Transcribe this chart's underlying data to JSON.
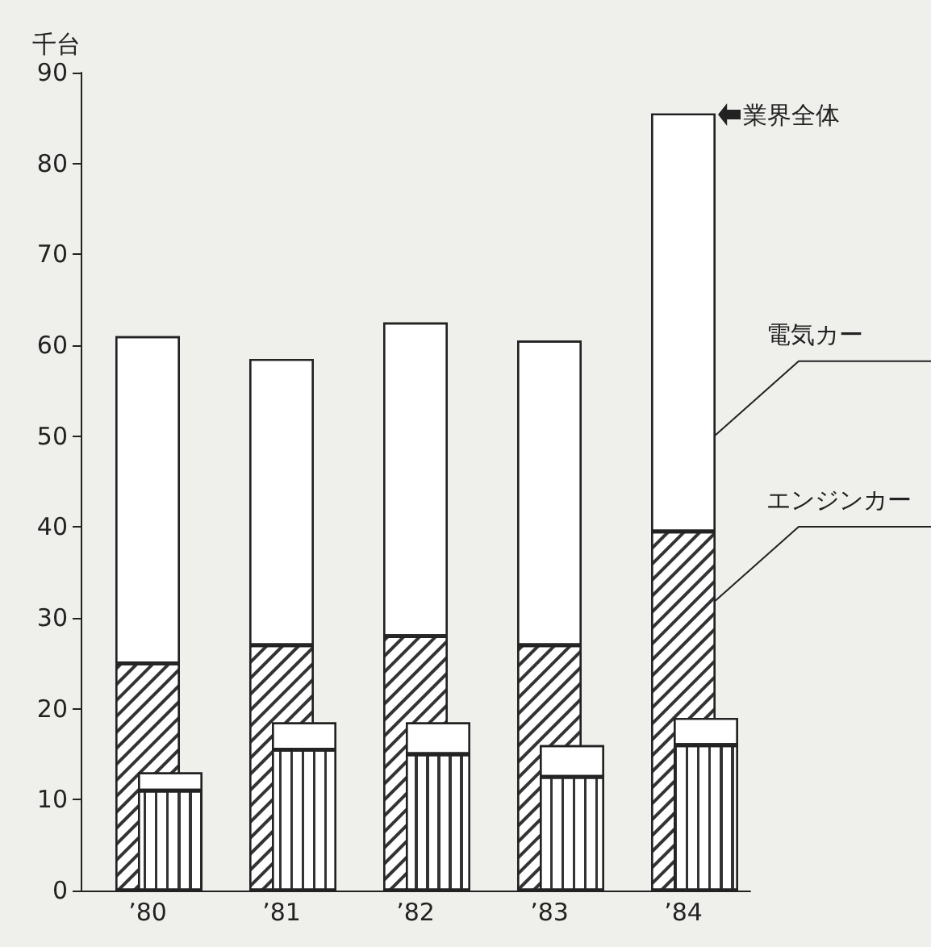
{
  "chart_data": [
    {
      "type": "bar",
      "ylabel": "千台",
      "categories": [
        "’80",
        "’81",
        "’82",
        "’83",
        "’84"
      ],
      "stacked": true,
      "series": [
        {
          "name": "エンジンカー",
          "color": "#ffffff",
          "values": [
            25,
            27,
            28,
            27,
            39.5
          ]
        },
        {
          "name": "電気カー",
          "color": "#ffffff",
          "values": [
            36,
            31.5,
            34.5,
            33.5,
            46
          ]
        }
      ],
      "annotations": [
        {
          "text": "業界全体",
          "x": "’84",
          "y": 85.5
        }
      ],
      "ylim": [
        0,
        90
      ],
      "yticks": [
        0,
        10,
        20,
        30,
        40,
        50,
        60,
        70,
        80,
        90
      ],
      "grid": false,
      "legend": false
    },
    {
      "type": "bar",
      "categories": [
        null,
        null,
        null,
        null,
        null
      ],
      "stacked": true,
      "series": [
        {
          "color": "#ffffff",
          "values": [
            11,
            15.5,
            15,
            12.5,
            16
          ]
        },
        {
          "color": "#ffffff",
          "values": [
            2,
            3,
            3.5,
            3.5,
            3
          ]
        }
      ],
      "ylim": [
        0,
        90
      ],
      "tick_labels": false,
      "grid": false,
      "legend": false
    }
  ]
}
